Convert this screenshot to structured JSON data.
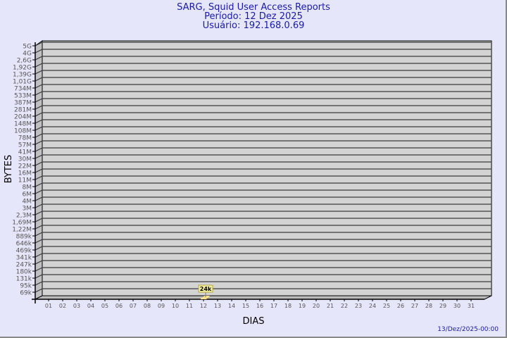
{
  "chart_data": {
    "type": "bar",
    "title": "SARG, Squid User Access Reports",
    "subtitle_period": "Período: 12 Dez 2025",
    "subtitle_user": "Usuário: 192.168.0.69",
    "xlabel": "DIAS",
    "ylabel": "BYTES",
    "footer": "13/Dez/2025-00:00",
    "y_scale": "log",
    "grid": true,
    "categories": [
      "01",
      "02",
      "03",
      "04",
      "05",
      "06",
      "07",
      "08",
      "09",
      "10",
      "11",
      "12",
      "13",
      "14",
      "15",
      "16",
      "17",
      "18",
      "19",
      "20",
      "21",
      "22",
      "23",
      "24",
      "25",
      "26",
      "27",
      "28",
      "29",
      "30",
      "31"
    ],
    "y_tick_labels": [
      "5G",
      "4G",
      "2,6G",
      "1,92G",
      "1,39G",
      "1,01G",
      "734M",
      "533M",
      "387M",
      "281M",
      "204M",
      "148M",
      "108M",
      "78M",
      "57M",
      "41M",
      "30M",
      "22M",
      "16M",
      "11M",
      "8M",
      "6M",
      "4M",
      "3M",
      "2,3M",
      "1,69M",
      "1,22M",
      "889k",
      "646k",
      "469k",
      "341k",
      "247k",
      "180k",
      "131k",
      "95k",
      "69k"
    ],
    "series": [
      {
        "values": [
          null,
          null,
          null,
          null,
          null,
          null,
          null,
          null,
          null,
          null,
          null,
          24000,
          null,
          null,
          null,
          null,
          null,
          null,
          null,
          null,
          null,
          null,
          null,
          null,
          null,
          null,
          null,
          null,
          null,
          null,
          null
        ],
        "labels": {
          "12": "24k"
        }
      }
    ],
    "colors": {
      "background": "#e6e6fa",
      "plot": "#d3d3d3",
      "bar": "#ffe38a",
      "label_bg": "#f5f0a0",
      "title": "#1a1aa6"
    }
  }
}
